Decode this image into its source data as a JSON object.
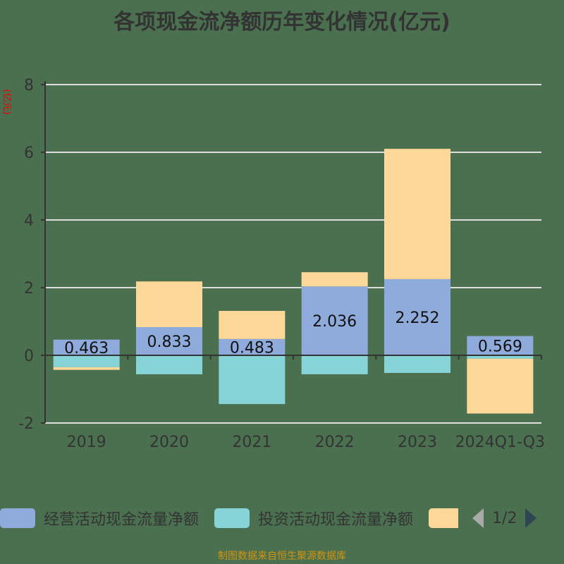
{
  "chart_data": {
    "type": "bar",
    "stacked": true,
    "title": "各项现金流净额历年变化情况(亿元)",
    "ylabel": "(亿元)",
    "xlabel": "",
    "categories": [
      "2019",
      "2020",
      "2021",
      "2022",
      "2023",
      "2024Q1-Q3"
    ],
    "ylim": [
      -2,
      8
    ],
    "yticks": [
      -2,
      0,
      2,
      4,
      6,
      8
    ],
    "grid": true,
    "legend_position": "bottom",
    "series": [
      {
        "name": "经营活动现金流量净额",
        "color": "#8fabdb",
        "values": [
          0.463,
          0.833,
          0.483,
          2.036,
          2.252,
          0.569
        ],
        "labels": [
          "0.463",
          "0.833",
          "0.483",
          "2.036",
          "2.252",
          "0.569"
        ]
      },
      {
        "name": "投资活动现金流量净额",
        "color": "#86d4d7",
        "values": [
          -0.35,
          -0.56,
          -1.44,
          -0.56,
          -0.52,
          -0.1
        ]
      },
      {
        "name": "",
        "color": "#fdd898",
        "values": [
          -0.08,
          1.35,
          0.83,
          0.42,
          3.85,
          -1.62
        ]
      }
    ]
  },
  "legend": {
    "page": "1/2"
  },
  "footer": "制图数据来自恒生聚源数据库"
}
